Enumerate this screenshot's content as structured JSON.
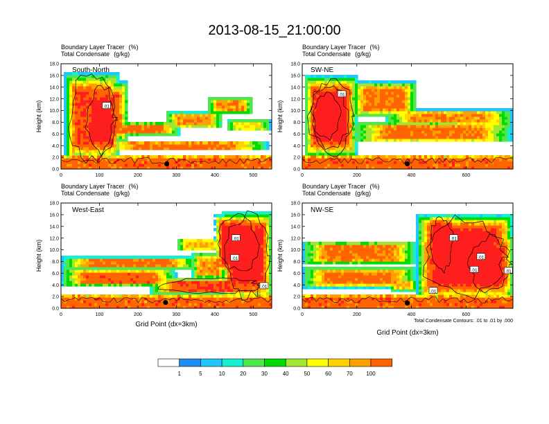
{
  "figure": {
    "title": "2013-08-15_21:00:00",
    "footnote": "Total Condensate Contours: .01 to .01 by .000"
  },
  "colors": {
    "levels": [
      "#ffffff",
      "#1e8cf0",
      "#1ec8ff",
      "#14f0d2",
      "#50e650",
      "#00dc00",
      "#a0e632",
      "#ffff00",
      "#ffd200",
      "#ffa000",
      "#ff6400",
      "#ff1e1e"
    ],
    "contour": "#000000",
    "frame": "#000000"
  },
  "chart_data": {
    "type": "heatmap",
    "variable": "Boundary Layer Tracer",
    "variable_unit": "(%)",
    "contour_variable": "Total Condensate",
    "contour_unit": "(g/kg)",
    "colorbar_labels": [
      "1",
      "5",
      "10",
      "20",
      "30",
      "40",
      "50",
      "60",
      "70",
      "100"
    ],
    "y_ticks": [
      "0.0",
      "2.0",
      "4.0",
      "6.0",
      "8.0",
      "10.0",
      "12.0",
      "14.0",
      "16.0",
      "18.0"
    ],
    "ylim": [
      0,
      18
    ],
    "ylabel": "Height (km)",
    "xlabel": "Grid Point (dx=3km)",
    "contour_label": ".01",
    "panels": [
      {
        "name": "South-North",
        "xlim": [
          0,
          548
        ],
        "xticks": [
          0,
          100,
          200,
          300,
          400,
          500
        ],
        "marker_x": 275,
        "marker_y": 0.9,
        "features": [
          [
            10,
            150,
            1.2,
            16.5,
            1.0
          ],
          [
            60,
            150,
            2.5,
            14.2,
            1.4
          ],
          [
            55,
            175,
            4.5,
            15.0,
            0.9
          ],
          [
            100,
            540,
            3.2,
            4.8,
            0.8
          ],
          [
            90,
            310,
            5.8,
            8.0,
            0.8
          ],
          [
            270,
            420,
            7.0,
            9.8,
            0.7
          ],
          [
            380,
            500,
            9.5,
            12.2,
            0.7
          ],
          [
            430,
            545,
            6.5,
            8.4,
            0.5
          ]
        ],
        "contour_labels": [
          [
            118,
            10.8
          ]
        ]
      },
      {
        "name": "SW-NE",
        "xlim": [
          0,
          772
        ],
        "xticks": [
          0,
          200,
          400,
          600
        ],
        "marker_x": 385,
        "marker_y": 0.9,
        "features": [
          [
            10,
            200,
            2.0,
            16.0,
            1.2
          ],
          [
            20,
            180,
            3.0,
            14.6,
            1.5
          ],
          [
            180,
            420,
            9.0,
            15.0,
            0.8
          ],
          [
            180,
            772,
            4.5,
            8.0,
            0.8
          ],
          [
            300,
            772,
            7.5,
            10.2,
            0.7
          ],
          [
            520,
            772,
            7.0,
            9.2,
            0.5
          ],
          [
            30,
            150,
            5.0,
            13.0,
            1.3
          ]
        ],
        "contour_labels": [
          [
            145,
            12.8
          ]
        ]
      },
      {
        "name": "West-East",
        "xlim": [
          0,
          548
        ],
        "xticks": [
          0,
          100,
          200,
          300,
          400,
          500
        ],
        "marker_x": 272,
        "marker_y": 1.0,
        "features": [
          [
            0,
            360,
            6.8,
            8.8,
            0.8
          ],
          [
            0,
            300,
            3.8,
            6.8,
            0.9
          ],
          [
            230,
            548,
            2.5,
            5.2,
            1.0
          ],
          [
            420,
            548,
            1.5,
            16.5,
            1.3
          ],
          [
            400,
            520,
            6.0,
            16.0,
            1.5
          ],
          [
            340,
            430,
            5.0,
            9.5,
            0.7
          ],
          [
            300,
            420,
            9.8,
            12.0,
            0.6
          ]
        ],
        "contour_labels": [
          [
            455,
            12.0
          ],
          [
            452,
            8.6
          ],
          [
            528,
            3.8
          ]
        ]
      },
      {
        "name": "NW-SE",
        "xlim": [
          0,
          772
        ],
        "xticks": [
          0,
          200,
          400,
          600
        ],
        "marker_x": 385,
        "marker_y": 0.9,
        "features": [
          [
            0,
            420,
            7.5,
            11.5,
            0.8
          ],
          [
            0,
            420,
            3.5,
            7.0,
            0.8
          ],
          [
            420,
            772,
            1.5,
            16.0,
            1.4
          ],
          [
            460,
            560,
            6.0,
            16.0,
            1.6
          ],
          [
            560,
            772,
            9.5,
            14.2,
            0.9
          ],
          [
            600,
            772,
            2.5,
            12.5,
            1.2
          ],
          [
            320,
            420,
            3.0,
            5.0,
            0.6
          ]
        ],
        "contour_labels": [
          [
            555,
            12.0
          ],
          [
            480,
            3.0
          ],
          [
            630,
            6.6
          ],
          [
            655,
            8.8
          ],
          [
            755,
            6.4
          ]
        ]
      }
    ]
  }
}
